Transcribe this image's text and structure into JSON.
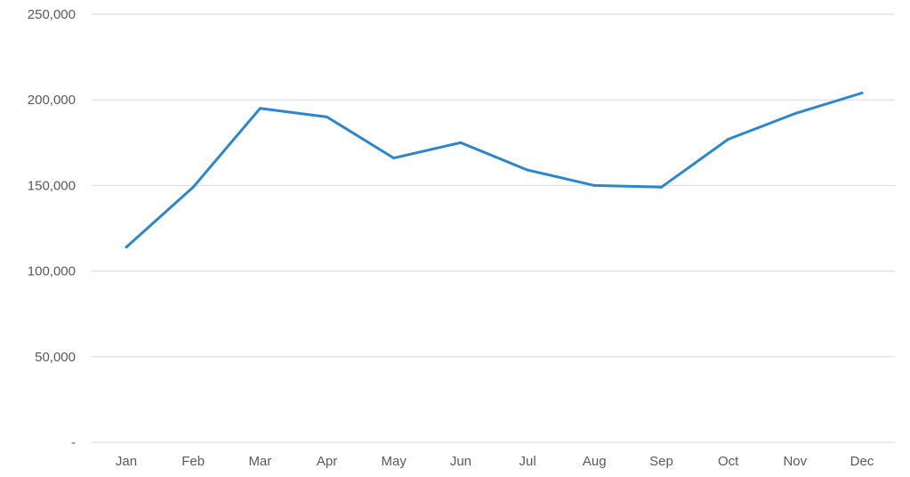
{
  "chart_data": {
    "type": "line",
    "title": "",
    "xlabel": "",
    "ylabel": "",
    "categories": [
      "Jan",
      "Feb",
      "Mar",
      "Apr",
      "May",
      "Jun",
      "Jul",
      "Aug",
      "Sep",
      "Oct",
      "Nov",
      "Dec"
    ],
    "series": [
      {
        "values": [
          114000,
          149000,
          195000,
          190000,
          166000,
          175000,
          159000,
          150000,
          149000,
          177000,
          192000,
          204000
        ],
        "color": "#2e86c8"
      }
    ],
    "ylim": [
      0,
      250000
    ],
    "yticks": [
      0,
      50000,
      100000,
      150000,
      200000,
      250000
    ],
    "ytick_labels": [
      "-",
      "50,000",
      "100,000",
      "150,000",
      "200,000",
      "250,000"
    ],
    "grid": true,
    "legend": "none",
    "colors": {
      "grid": "#d9d9d9",
      "axis": "#bfbfbf",
      "text": "#595959"
    }
  }
}
